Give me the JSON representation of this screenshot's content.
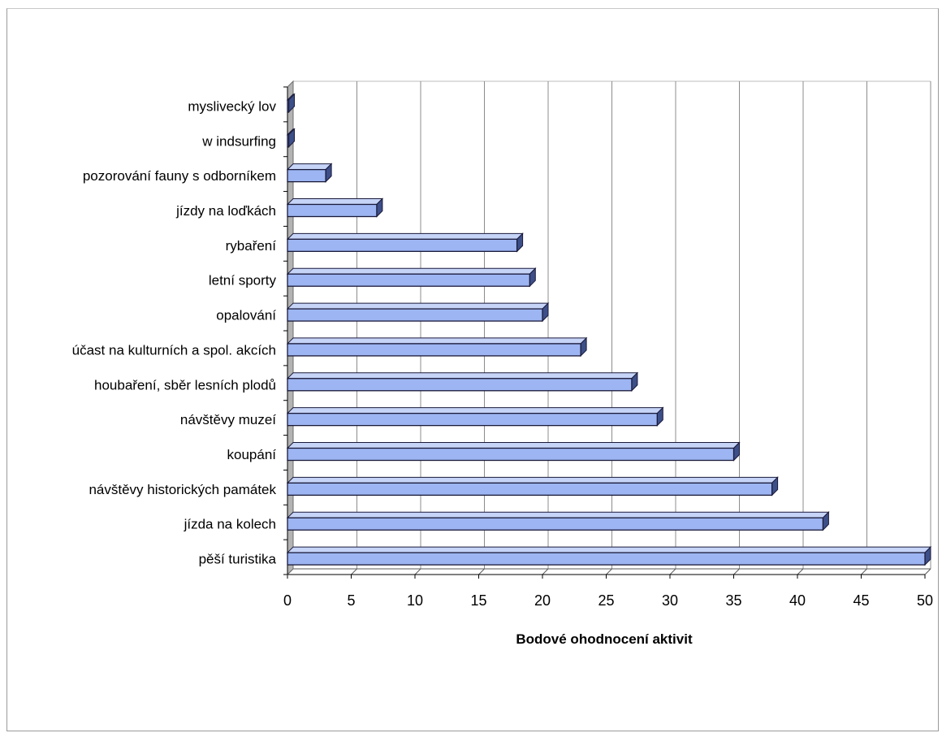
{
  "chart_data": {
    "type": "bar",
    "orientation": "horizontal",
    "style": "3d",
    "title": "",
    "xlabel": "Bodové ohodnocení aktivit",
    "ylabel": "",
    "xlim": [
      0,
      50
    ],
    "x_ticks": [
      "0",
      "5",
      "10",
      "15",
      "20",
      "25",
      "30",
      "35",
      "40",
      "45",
      "50"
    ],
    "grid": "vertical major gridlines",
    "legend": "none",
    "colors": {
      "bar_front": "#9db5f2",
      "bar_top": "#c6d4f8",
      "bar_side": "#3d4f88",
      "bar_outline": "#1a1a3a",
      "gridline": "#8c8c8c",
      "wall_side": "#b3b3b3"
    },
    "categories": [
      "myslivecký lov",
      "w indsurfing",
      "pozorování fauny s odborníkem",
      "jízdy na loďkách",
      "rybaření",
      "letní sporty",
      "opalování",
      "účast na kulturních a spol. akcích",
      "houbaření, sběr lesních plodů",
      "návštěvy muzeí",
      "koupání",
      "návštěvy historických památek",
      "jízda na kolech",
      "pěší turistika"
    ],
    "values": [
      0,
      0,
      3,
      7,
      18,
      19,
      20,
      23,
      27,
      29,
      35,
      38,
      42,
      50
    ]
  }
}
